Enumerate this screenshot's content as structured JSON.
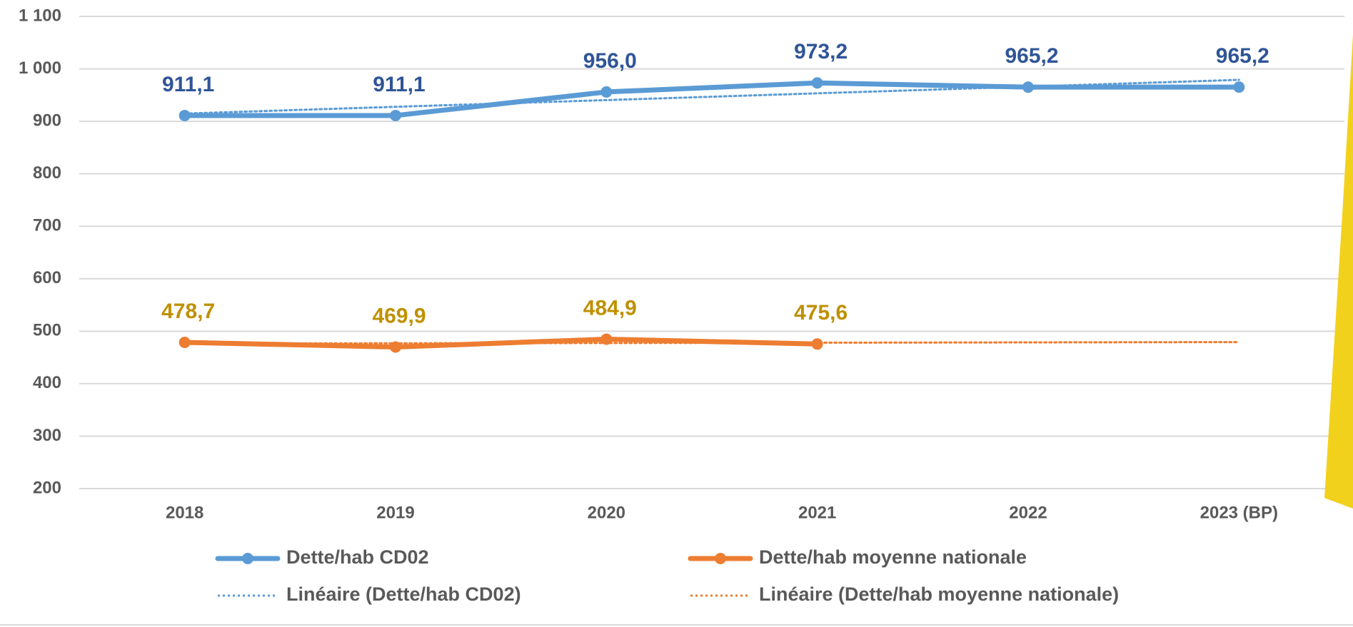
{
  "chart_data": {
    "type": "line",
    "categories": [
      "2018",
      "2019",
      "2020",
      "2021",
      "2022",
      "2023 (BP)"
    ],
    "series": [
      {
        "name": "Dette/hab CD02",
        "color": "#5b9bd5",
        "style": "solid",
        "marker": true,
        "label_color": "#2f5597",
        "values": [
          911.1,
          911.1,
          956.0,
          973.2,
          965.2,
          965.2
        ],
        "value_labels": [
          "911,1",
          "911,1",
          "956,0",
          "973,2",
          "965,2",
          "965,2"
        ]
      },
      {
        "name": "Dette/hab moyenne nationale",
        "color": "#ed7d31",
        "style": "solid",
        "marker": true,
        "label_color": "#bf9000",
        "values": [
          478.7,
          469.9,
          484.9,
          475.6,
          null,
          null
        ],
        "value_labels": [
          "478,7",
          "469,9",
          "484,9",
          "475,6",
          null,
          null
        ]
      },
      {
        "name": "Linéaire (Dette/hab CD02)",
        "color": "#5b9bd5",
        "style": "dotted",
        "marker": false,
        "values": [
          914.8,
          927.7,
          940.5,
          953.4,
          966.2,
          979.1
        ]
      },
      {
        "name": "Linéaire (Dette/hab moyenne nationale)",
        "color": "#ed7d31",
        "style": "dotted",
        "marker": false,
        "values": [
          476.4,
          477.0,
          477.5,
          478.1,
          478.7,
          479.3
        ]
      }
    ],
    "ylim": [
      200,
      1100
    ],
    "yticks": [
      200,
      300,
      400,
      500,
      600,
      700,
      800,
      900,
      {
        "value": 1000,
        "label": "1 000"
      },
      {
        "value": 1100,
        "label": "1 100"
      }
    ],
    "grid": true,
    "legend": "bottom"
  }
}
